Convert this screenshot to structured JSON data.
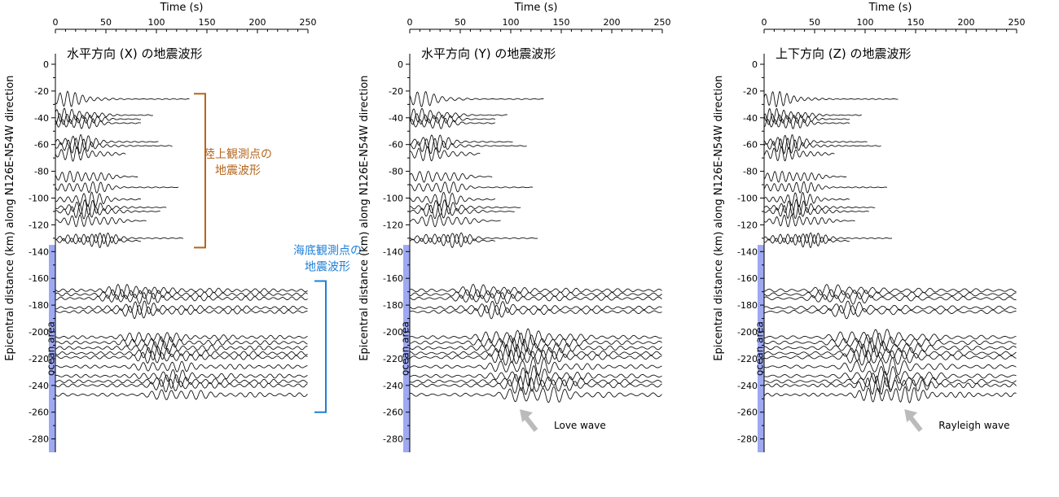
{
  "chart_data": [
    {
      "type": "line",
      "title": "水平方向 (X) の地震波形",
      "xlabel": "Time (s)",
      "ylabel": "Epicentral distance (km) along N126E-N54W direction",
      "xlim": [
        0,
        250
      ],
      "ylim": [
        -290,
        5
      ],
      "xticks": [
        0,
        50,
        100,
        150,
        200,
        250
      ],
      "yticks": [
        0,
        -20,
        -40,
        -60,
        -80,
        -100,
        -120,
        -140,
        -160,
        -180,
        -200,
        -220,
        -240,
        -260,
        -280
      ],
      "ocean_label": "ocean area",
      "ocean_range": [
        -135,
        -290
      ],
      "groups": [
        {
          "label": "陸上観測点の\n地震波形",
          "range": [
            -22,
            -137
          ],
          "color": "#b5651d"
        },
        {
          "label": "海底観測点の\n地震波形",
          "range": [
            -162,
            -260
          ],
          "color": "#1f7fd6"
        }
      ],
      "wave_annotation": "",
      "wave_arrow_at": null
    },
    {
      "type": "line",
      "title": "水平方向 (Y) の地震波形",
      "xlabel": "Time (s)",
      "ylabel": "Epicentral distance (km) along N126E-N54W direction",
      "xlim": [
        0,
        250
      ],
      "ylim": [
        -290,
        5
      ],
      "xticks": [
        0,
        50,
        100,
        150,
        200,
        250
      ],
      "yticks": [
        0,
        -20,
        -40,
        -60,
        -80,
        -100,
        -120,
        -140,
        -160,
        -180,
        -200,
        -220,
        -240,
        -260,
        -280
      ],
      "ocean_label": "ocean area",
      "ocean_range": [
        -135,
        -290
      ],
      "groups": [],
      "wave_annotation": "Love wave",
      "wave_arrow_at": [
        125,
        -270
      ]
    },
    {
      "type": "line",
      "title": "上下方向 (Z) の地震波形",
      "xlabel": "Time (s)",
      "ylabel": "Epicentral distance (km) along N126E-N54W direction",
      "xlim": [
        0,
        250
      ],
      "ylim": [
        -290,
        5
      ],
      "xticks": [
        0,
        50,
        100,
        150,
        200,
        250
      ],
      "yticks": [
        0,
        -20,
        -40,
        -60,
        -80,
        -100,
        -120,
        -140,
        -160,
        -180,
        -200,
        -220,
        -240,
        -260,
        -280
      ],
      "ocean_label": "ocean area",
      "ocean_range": [
        -135,
        -290
      ],
      "groups": [],
      "wave_annotation": "Rayleigh wave",
      "wave_arrow_at": [
        155,
        -270
      ]
    }
  ],
  "traces": {
    "land": [
      {
        "dist": -26,
        "len": 133
      },
      {
        "dist": -38,
        "len": 97
      },
      {
        "dist": -41,
        "len": 85
      },
      {
        "dist": -44,
        "len": 85
      },
      {
        "dist": -58,
        "len": 102
      },
      {
        "dist": -61,
        "len": 116
      },
      {
        "dist": -67,
        "len": 70
      },
      {
        "dist": -84,
        "len": 82
      },
      {
        "dist": -92,
        "len": 122
      },
      {
        "dist": -101,
        "len": 85
      },
      {
        "dist": -107,
        "len": 110
      },
      {
        "dist": -110,
        "len": 104
      },
      {
        "dist": -117,
        "len": 90
      },
      {
        "dist": -130,
        "len": 127
      },
      {
        "dist": -132,
        "len": 85
      }
    ],
    "ocean": [
      {
        "dist": -169
      },
      {
        "dist": -172
      },
      {
        "dist": -175
      },
      {
        "dist": -182
      },
      {
        "dist": -185
      },
      {
        "dist": -204
      },
      {
        "dist": -208
      },
      {
        "dist": -212
      },
      {
        "dist": -216
      },
      {
        "dist": -219
      },
      {
        "dist": -226
      },
      {
        "dist": -233
      },
      {
        "dist": -237
      },
      {
        "dist": -240
      },
      {
        "dist": -247
      }
    ]
  },
  "colors": {
    "ocean_band": "#9ea9f3",
    "trace": "#111111",
    "arrow": "#bbbbbb"
  }
}
